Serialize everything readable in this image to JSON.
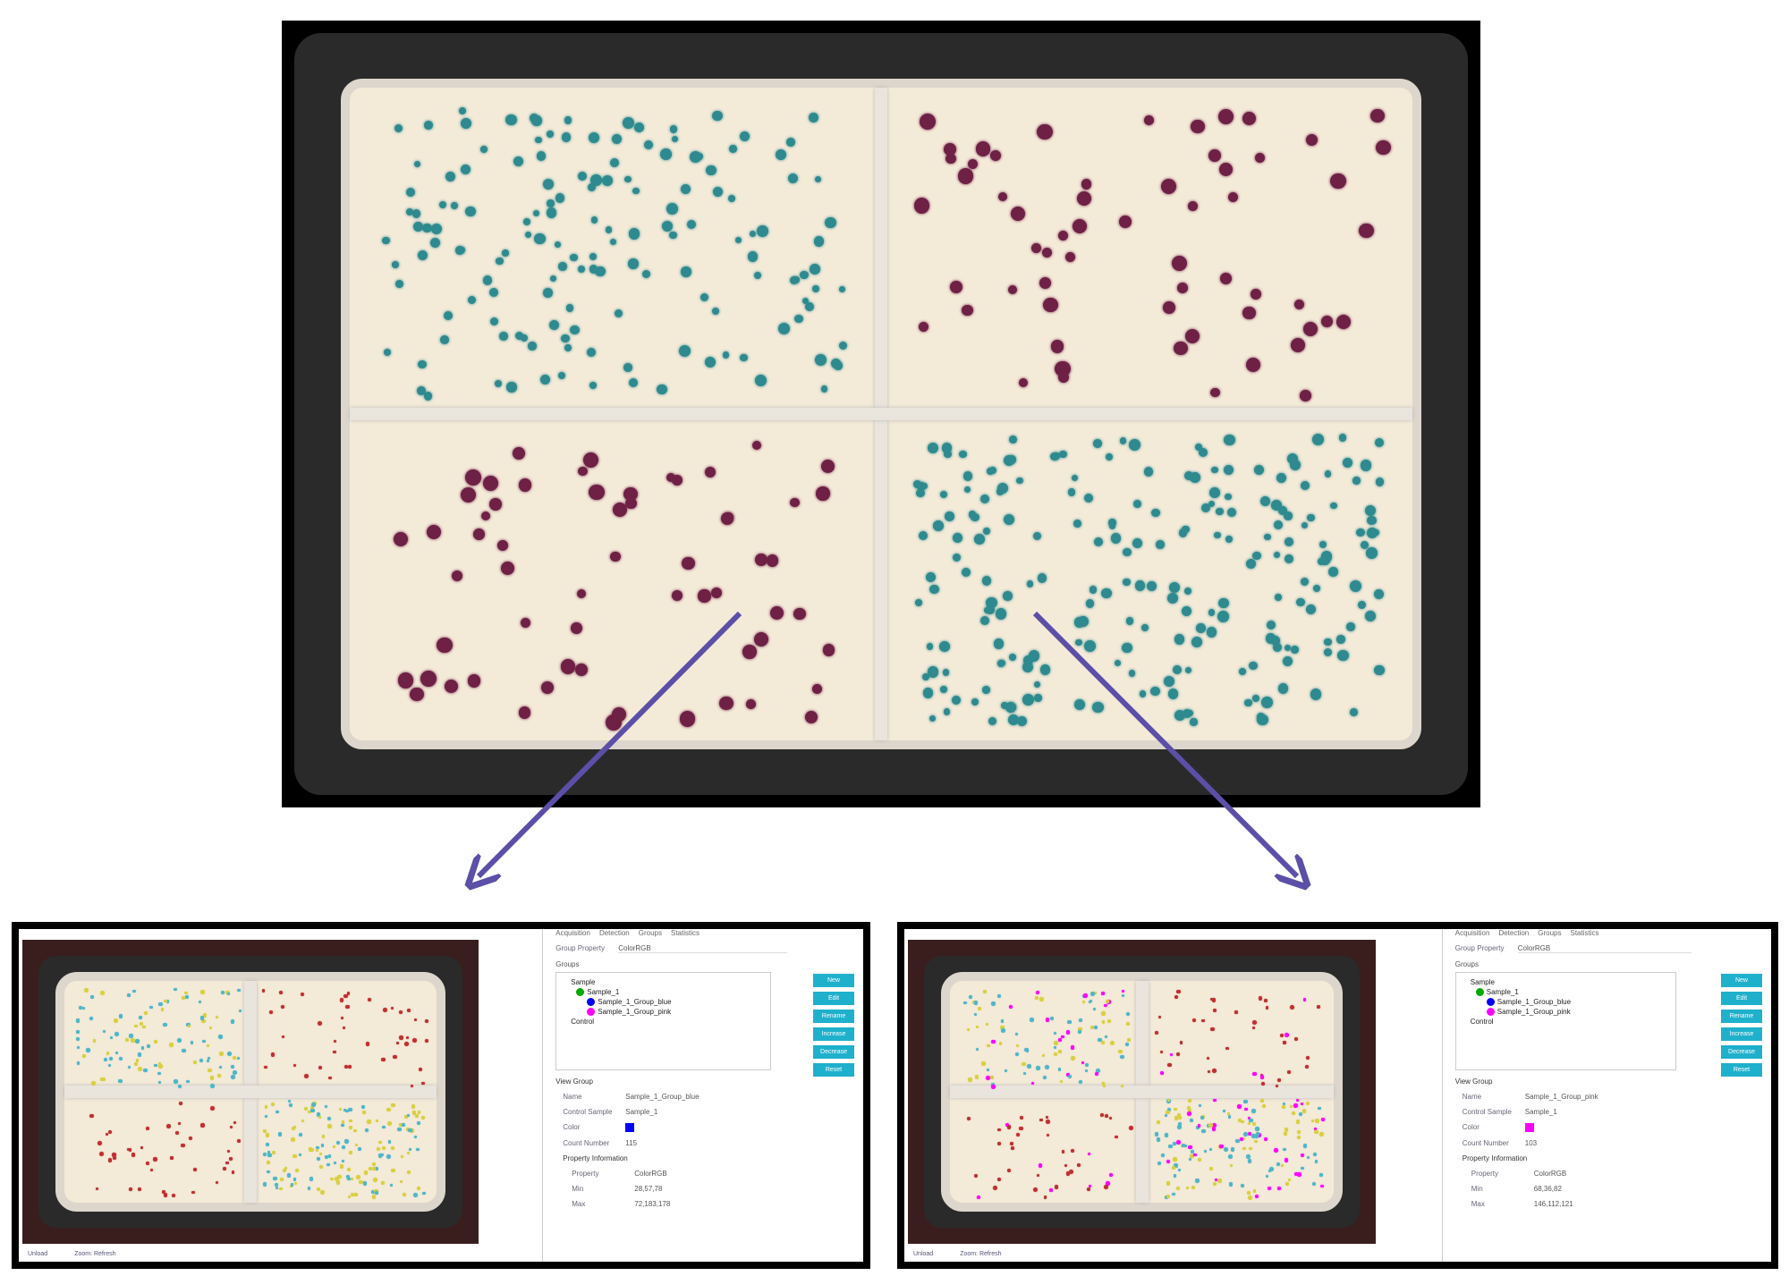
{
  "colors": {
    "arrow": "#5b4fa8",
    "blue_colony": "#2e8a8e",
    "pink_colony": "#6e2045",
    "button": "#1fb0cc"
  },
  "panels": [
    {
      "tabs": [
        "Acquisition",
        "Detection",
        "Groups",
        "Statistics"
      ],
      "group_property_label": "Group Property",
      "group_property_value": "ColorRGB",
      "groups_label": "Groups",
      "tree": {
        "root": "Sample",
        "sample": "Sample_1",
        "child1": "Sample_1_Group_blue",
        "child2": "Sample_1_Group_pink",
        "control": "Control"
      },
      "buttons": [
        "New",
        "Edit",
        "Rename",
        "Increase",
        "Decrease",
        "Reset"
      ],
      "view_group_label": "View Group",
      "name_label": "Name",
      "name_value": "Sample_1_Group_blue",
      "control_label": "Control Sample",
      "control_value": "Sample_1",
      "color_label": "Color",
      "color_value": "#0000ff",
      "count_label": "Count Number",
      "count_value": "115",
      "prop_info_label": "Property Information",
      "property_label": "Property",
      "property_value": "ColorRGB",
      "min_label": "Min",
      "min_value": "28,57,78",
      "max_label": "Max",
      "max_value": "72,183,178",
      "status": [
        "Unload",
        "Zoom: Refresh"
      ]
    },
    {
      "tabs": [
        "Acquisition",
        "Detection",
        "Groups",
        "Statistics"
      ],
      "group_property_label": "Group Property",
      "group_property_value": "ColorRGB",
      "groups_label": "Groups",
      "tree": {
        "root": "Sample",
        "sample": "Sample_1",
        "child1": "Sample_1_Group_blue",
        "child2": "Sample_1_Group_pink",
        "control": "Control"
      },
      "buttons": [
        "New",
        "Edit",
        "Rename",
        "Increase",
        "Decrease",
        "Reset"
      ],
      "view_group_label": "View Group",
      "name_label": "Name",
      "name_value": "Sample_1_Group_pink",
      "control_label": "Control Sample",
      "control_value": "Sample_1",
      "color_label": "Color",
      "color_value": "#ff00ff",
      "count_label": "Count Number",
      "count_value": "103",
      "prop_info_label": "Property Information",
      "property_label": "Property",
      "property_value": "ColorRGB",
      "min_label": "Min",
      "min_value": "68,36,82",
      "max_label": "Max",
      "max_value": "146,112,121",
      "status": [
        "Unload",
        "Zoom: Refresh"
      ]
    }
  ]
}
